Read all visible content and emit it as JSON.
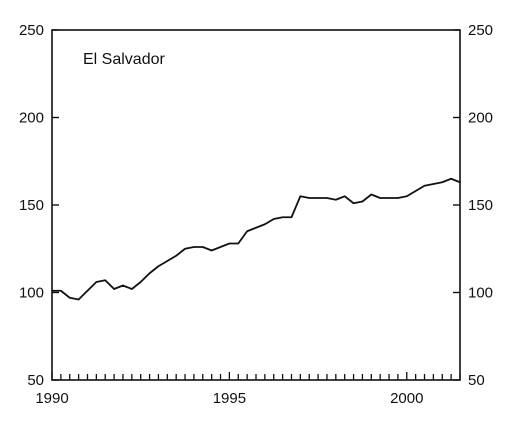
{
  "chart_data": {
    "type": "line",
    "title": "El Salvador",
    "xlabel": "",
    "ylabel": "",
    "xlim": [
      1990,
      2001.5
    ],
    "ylim": [
      50,
      250
    ],
    "x_ticks": [
      1990,
      1995,
      2000
    ],
    "x_tick_labels": [
      "1990",
      "1995",
      "2000"
    ],
    "y_ticks": [
      50,
      100,
      150,
      200,
      250
    ],
    "y_tick_labels": [
      "50",
      "100",
      "150",
      "200",
      "250"
    ],
    "grid": false,
    "legend": "none",
    "right_axis_mirrored": true,
    "line_color": "#111111",
    "series": [
      {
        "x": [
          1990,
          1990.25,
          1990.5,
          1990.75,
          1991,
          1991.25,
          1991.5,
          1991.75,
          1992,
          1992.25,
          1992.5,
          1992.75,
          1993,
          1993.25,
          1993.5,
          1993.75,
          1994,
          1994.25,
          1994.5,
          1994.75,
          1995,
          1995.25,
          1995.5,
          1995.75,
          1996,
          1996.25,
          1996.5,
          1996.75,
          1997,
          1997.25,
          1997.5,
          1997.75,
          1998,
          1998.25,
          1998.5,
          1998.75,
          1999,
          1999.25,
          1999.5,
          1999.75,
          2000,
          2000.25,
          2000.5,
          2000.75,
          2001,
          2001.25,
          2001.5
        ],
        "y": [
          101,
          101,
          97,
          96,
          101,
          106,
          107,
          102,
          104,
          102,
          106,
          111,
          115,
          118,
          121,
          125,
          126,
          126,
          124,
          126,
          128,
          128,
          135,
          137,
          139,
          142,
          143,
          143,
          155,
          154,
          154,
          154,
          153,
          155,
          151,
          152,
          156,
          154,
          154,
          154,
          155,
          158,
          161,
          162,
          163,
          165,
          163
        ]
      }
    ]
  }
}
